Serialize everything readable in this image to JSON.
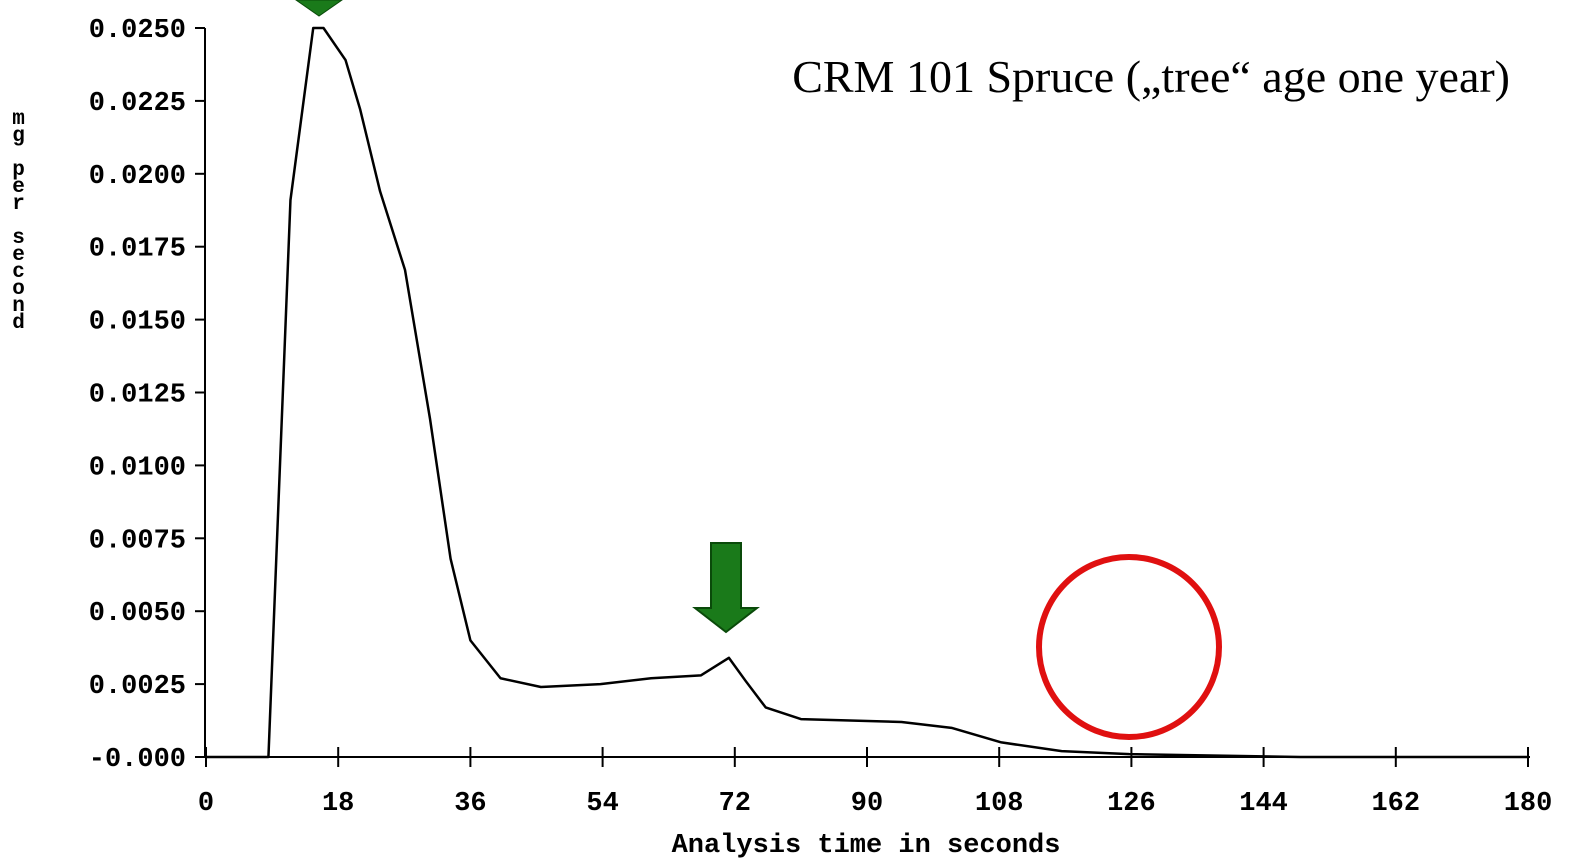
{
  "chart_data": {
    "type": "line",
    "title": "CRM 101 Spruce („tree“ age one year)",
    "x_label": "Analysis time in seconds",
    "y_label": "mg per second",
    "x": [
      0,
      8.5,
      11.5,
      14.6,
      16,
      19,
      21,
      23.7,
      27.1,
      30.5,
      33.3,
      36,
      40.1,
      45.6,
      53.7,
      60.6,
      67.4,
      71.2,
      73.5,
      76.2,
      81,
      94.7,
      101.5,
      108.3,
      116.5,
      125.7,
      149,
      180
    ],
    "series": [
      {
        "color": "#000000",
        "values": [
          0,
          0,
          0.0191,
          0.025,
          0.025,
          0.0239,
          0.0222,
          0.0194,
          0.0167,
          0.0116,
          0.0068,
          0.004,
          0.0027,
          0.0024,
          0.0025,
          0.0027,
          0.0028,
          0.0034,
          0.0026,
          0.0017,
          0.0013,
          0.0012,
          0.001,
          0.0005,
          0.0002,
          0.0001,
          0,
          0
        ]
      }
    ],
    "xlim": [
      0,
      180
    ],
    "xticks": [
      0,
      18,
      36,
      54,
      72,
      90,
      108,
      126,
      144,
      162,
      180
    ],
    "ylim": [
      0,
      0.025
    ],
    "yticks": [
      {
        "value": 0.025,
        "label": "0.0250"
      },
      {
        "value": 0.0225,
        "label": "0.0225"
      },
      {
        "value": 0.02,
        "label": "0.0200"
      },
      {
        "value": 0.0175,
        "label": "0.0175"
      },
      {
        "value": 0.015,
        "label": "0.0150"
      },
      {
        "value": 0.0125,
        "label": "0.0125"
      },
      {
        "value": 0.01,
        "label": "0.0100"
      },
      {
        "value": 0.0075,
        "label": "0.0075"
      },
      {
        "value": 0.005,
        "label": "0.0050"
      },
      {
        "value": 0.0025,
        "label": "0.0025"
      },
      {
        "value": 0,
        "label": "-0.000"
      }
    ],
    "grid": false
  }
}
